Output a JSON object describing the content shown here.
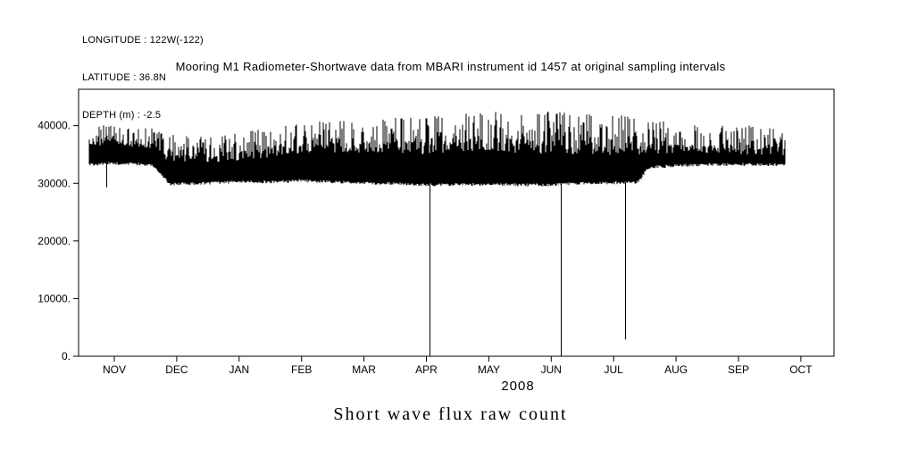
{
  "header": {
    "longitude": "LONGITUDE : 122W(-122)",
    "latitude": "LATITUDE : 36.8N",
    "depth": "DEPTH (m) : -2.5"
  },
  "chart_data": {
    "type": "line",
    "title": "Mooring M1 Radiometer-Shortwave data from MBARI instrument id 1457 at original sampling intervals",
    "xlabel": "2008",
    "ylabel": "",
    "caption": "Short wave flux raw count",
    "x_tick_labels": [
      "NOV",
      "DEC",
      "JAN",
      "FEB",
      "MAR",
      "APR",
      "MAY",
      "JUN",
      "JUL",
      "AUG",
      "SEP",
      "OCT"
    ],
    "yticks": [
      0,
      10000,
      20000,
      30000,
      40000
    ],
    "ytick_labels": [
      "0.",
      "10000.",
      "20000.",
      "30000.",
      "40000."
    ],
    "ylim": [
      0,
      46300
    ],
    "series_name": "shortwave flux raw count (diurnal oscillation band)",
    "band_range_start_month_index": -0.4,
    "band_range_end_month_index": 10.74,
    "envelope": [
      {
        "month_index": -0.4,
        "lower": 33000,
        "core_upper": 36500,
        "upper": 40200
      },
      {
        "month_index": 0.0,
        "lower": 33200,
        "core_upper": 36500,
        "upper": 40000
      },
      {
        "month_index": 0.6,
        "lower": 33000,
        "core_upper": 36000,
        "upper": 39500
      },
      {
        "month_index": 0.9,
        "lower": 29600,
        "core_upper": 33500,
        "upper": 38500
      },
      {
        "month_index": 1.5,
        "lower": 29800,
        "core_upper": 33500,
        "upper": 38000
      },
      {
        "month_index": 2.0,
        "lower": 30000,
        "core_upper": 34000,
        "upper": 39000
      },
      {
        "month_index": 2.5,
        "lower": 30000,
        "core_upper": 34500,
        "upper": 39500
      },
      {
        "month_index": 3.0,
        "lower": 30200,
        "core_upper": 35000,
        "upper": 40500
      },
      {
        "month_index": 3.5,
        "lower": 30000,
        "core_upper": 35000,
        "upper": 41000
      },
      {
        "month_index": 4.0,
        "lower": 29800,
        "core_upper": 35200,
        "upper": 41000
      },
      {
        "month_index": 4.5,
        "lower": 29700,
        "core_upper": 35200,
        "upper": 41500
      },
      {
        "month_index": 5.0,
        "lower": 29500,
        "core_upper": 35000,
        "upper": 41500
      },
      {
        "month_index": 5.5,
        "lower": 29500,
        "core_upper": 35500,
        "upper": 42000
      },
      {
        "month_index": 6.0,
        "lower": 29600,
        "core_upper": 35500,
        "upper": 42500
      },
      {
        "month_index": 6.5,
        "lower": 29500,
        "core_upper": 35200,
        "upper": 42000
      },
      {
        "month_index": 7.0,
        "lower": 29500,
        "core_upper": 35000,
        "upper": 42500
      },
      {
        "month_index": 7.5,
        "lower": 29800,
        "core_upper": 35000,
        "upper": 42000
      },
      {
        "month_index": 8.0,
        "lower": 29800,
        "core_upper": 34800,
        "upper": 42000
      },
      {
        "month_index": 8.4,
        "lower": 30000,
        "core_upper": 34800,
        "upper": 41500
      },
      {
        "month_index": 8.55,
        "lower": 32500,
        "core_upper": 35000,
        "upper": 41000
      },
      {
        "month_index": 9.0,
        "lower": 32800,
        "core_upper": 35200,
        "upper": 40800
      },
      {
        "month_index": 9.5,
        "lower": 33000,
        "core_upper": 35000,
        "upper": 40000
      },
      {
        "month_index": 10.0,
        "lower": 33000,
        "core_upper": 35000,
        "upper": 40200
      },
      {
        "month_index": 10.5,
        "lower": 33000,
        "core_upper": 34800,
        "upper": 39800
      },
      {
        "month_index": 10.74,
        "lower": 33000,
        "core_upper": 34500,
        "upper": 39000
      }
    ],
    "spikes_down": [
      {
        "month_index": -0.13,
        "value": 29300
      },
      {
        "month_index": 5.05,
        "value": 0
      },
      {
        "month_index": 7.15,
        "value": 0
      },
      {
        "month_index": 8.18,
        "value": 2900
      }
    ]
  }
}
